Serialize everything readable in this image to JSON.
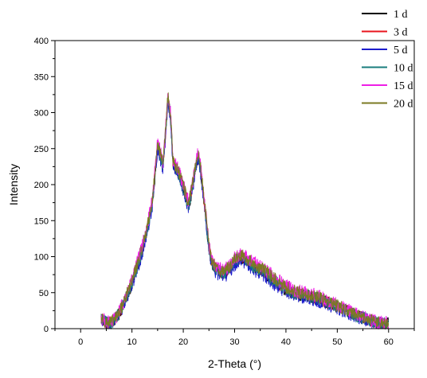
{
  "chart_data": {
    "type": "line",
    "title": "",
    "xlabel": "2-Theta (°)",
    "ylabel": "Intensity",
    "xlim": [
      -5,
      65
    ],
    "ylim": [
      0,
      400
    ],
    "xticks": [
      0,
      10,
      20,
      30,
      40,
      50,
      60
    ],
    "yticks": [
      0,
      50,
      100,
      150,
      200,
      250,
      300,
      350,
      400
    ],
    "grid": false,
    "legend_position": "top-right",
    "series": [
      {
        "name": "1 d",
        "color": "#000000",
        "offset": 0,
        "noise": 9
      },
      {
        "name": "3 d",
        "color": "#e8141c",
        "offset": 2,
        "noise": 9
      },
      {
        "name": "5 d",
        "color": "#1c1ccc",
        "offset": -3,
        "noise": 10
      },
      {
        "name": "10 d",
        "color": "#1a7d7d",
        "offset": 1,
        "noise": 9
      },
      {
        "name": "15 d",
        "color": "#ee1fe6",
        "offset": 6,
        "noise": 10
      },
      {
        "name": "20 d",
        "color": "#7b7a23",
        "offset": 4,
        "noise": 9
      }
    ],
    "profile": {
      "x": [
        4,
        5,
        6,
        7,
        8,
        9,
        10,
        11,
        12,
        13,
        14,
        15,
        16,
        16.5,
        17,
        17.5,
        18,
        19,
        20,
        21,
        21.5,
        22,
        22.8,
        23.3,
        24,
        24.6,
        25,
        25.5,
        26,
        27,
        28,
        29,
        30,
        31,
        32,
        33,
        34,
        35,
        36,
        37,
        38,
        39,
        40,
        42,
        44,
        46,
        48,
        50,
        52,
        54,
        56,
        58,
        60
      ],
      "y": [
        14,
        8,
        8,
        15,
        28,
        45,
        62,
        85,
        108,
        138,
        175,
        255,
        225,
        265,
        320,
        295,
        230,
        215,
        195,
        170,
        185,
        205,
        240,
        225,
        180,
        140,
        110,
        92,
        85,
        78,
        76,
        82,
        92,
        98,
        96,
        90,
        84,
        80,
        76,
        70,
        64,
        58,
        54,
        48,
        45,
        42,
        36,
        30,
        24,
        17,
        12,
        8,
        6
      ]
    }
  }
}
